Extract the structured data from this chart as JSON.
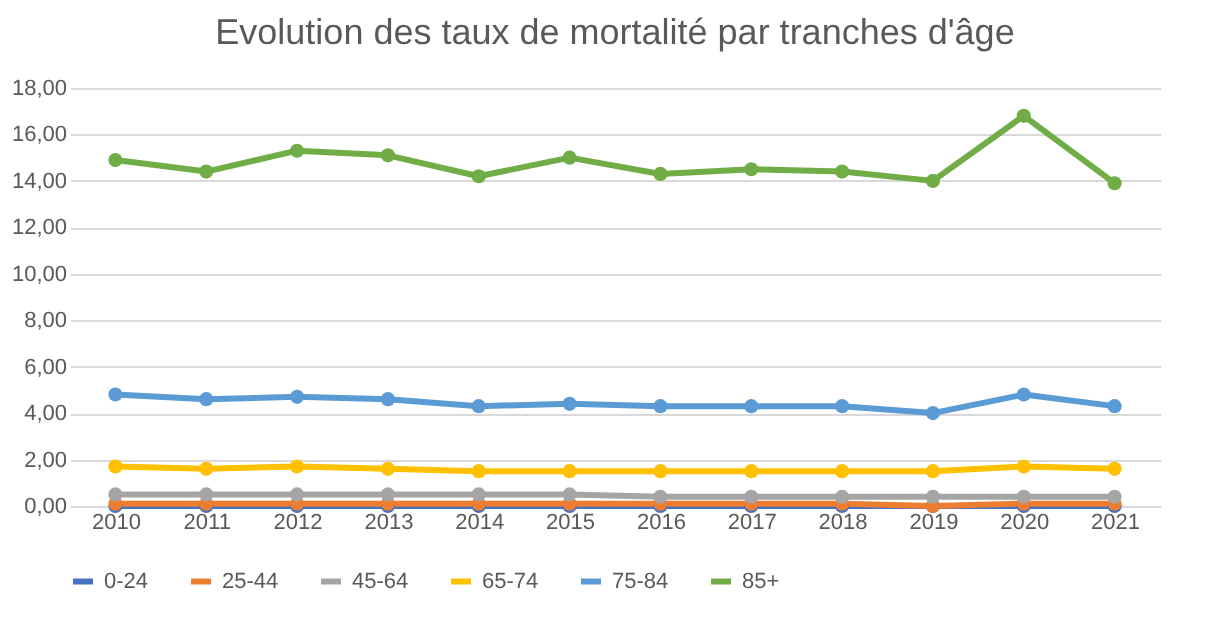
{
  "chart_data": {
    "type": "line",
    "title": "Evolution des taux de mortalité par tranches d'âge",
    "categories": [
      "2010",
      "2011",
      "2012",
      "2013",
      "2014",
      "2015",
      "2016",
      "2017",
      "2018",
      "2019",
      "2020",
      "2021"
    ],
    "series": [
      {
        "name": "0-24",
        "color": "#4472c4",
        "values": [
          0,
          0,
          0,
          0,
          0,
          0,
          0,
          0,
          0,
          0,
          0,
          0
        ]
      },
      {
        "name": "25-44",
        "color": "#ed7d31",
        "values": [
          0.1,
          0.1,
          0.1,
          0.1,
          0.1,
          0.1,
          0.1,
          0.1,
          0.1,
          0.0,
          0.1,
          0.1
        ]
      },
      {
        "name": "45-64",
        "color": "#a5a5a5",
        "values": [
          0.5,
          0.5,
          0.5,
          0.5,
          0.5,
          0.5,
          0.4,
          0.4,
          0.4,
          0.4,
          0.4,
          0.4
        ]
      },
      {
        "name": "65-74",
        "color": "#ffc000",
        "values": [
          1.7,
          1.6,
          1.7,
          1.6,
          1.5,
          1.5,
          1.5,
          1.5,
          1.5,
          1.5,
          1.7,
          1.6
        ]
      },
      {
        "name": "75-84",
        "color": "#5b9bd5",
        "values": [
          4.8,
          4.6,
          4.7,
          4.6,
          4.3,
          4.4,
          4.3,
          4.3,
          4.3,
          4.0,
          4.8,
          4.3
        ]
      },
      {
        "name": "85+",
        "color": "#70ad47",
        "values": [
          14.9,
          14.4,
          15.3,
          15.1,
          14.2,
          15.0,
          14.3,
          14.5,
          14.4,
          14.0,
          16.8,
          13.9
        ]
      }
    ],
    "ylim": [
      0,
      18
    ],
    "yticks": [
      {
        "value": 0,
        "label": "0,00"
      },
      {
        "value": 2,
        "label": "2,00"
      },
      {
        "value": 4,
        "label": "4,00"
      },
      {
        "value": 6,
        "label": "6,00"
      },
      {
        "value": 8,
        "label": "8,00"
      },
      {
        "value": 10,
        "label": "10,00"
      },
      {
        "value": 12,
        "label": "12,00"
      },
      {
        "value": 14,
        "label": "14,00"
      },
      {
        "value": 16,
        "label": "16,00"
      },
      {
        "value": 18,
        "label": "18,00"
      }
    ],
    "grid": "y",
    "legend": "bottom",
    "marker": "circle",
    "line_style": "solid"
  }
}
